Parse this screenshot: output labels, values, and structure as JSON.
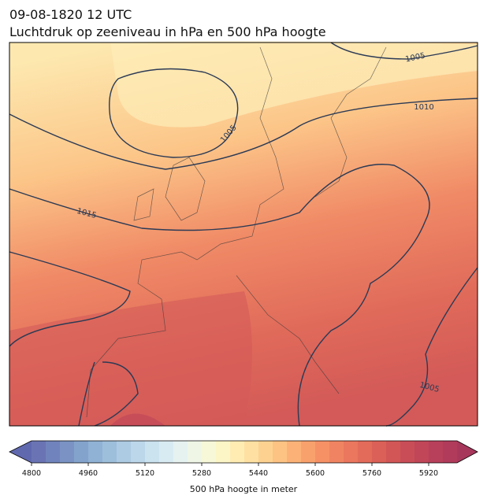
{
  "header": {
    "title": "09-08-1820 12 UTC",
    "subtitle": "Luchtdruk op zeeniveau in hPa en 500 hPa hoogte"
  },
  "map": {
    "contour_labels": [
      "1005",
      "1010",
      "1015",
      "1005",
      "1005"
    ]
  },
  "colorbar": {
    "label": "500 hPa hoogte in meter",
    "lim": [
      4800,
      6000
    ],
    "ticks": [
      4800,
      4960,
      5120,
      5280,
      5440,
      5600,
      5760,
      5920
    ],
    "colors": [
      "#6a74b4",
      "#7183bc",
      "#7a93c4",
      "#84a3cc",
      "#90b2d4",
      "#9ebfdb",
      "#adcbe2",
      "#bcd7e9",
      "#cbe2ef",
      "#d9ebf2",
      "#e5f2f0",
      "#eff6e6",
      "#f7f8d8",
      "#fcf5c6",
      "#feecb3",
      "#fee0a2",
      "#fdd291",
      "#fdc383",
      "#fcb277",
      "#f9a16d",
      "#f69166",
      "#f08462",
      "#ea775e",
      "#e36b5a",
      "#db6057",
      "#d25656",
      "#c94d57",
      "#c04658",
      "#b8405a",
      "#b03b5b"
    ]
  }
}
